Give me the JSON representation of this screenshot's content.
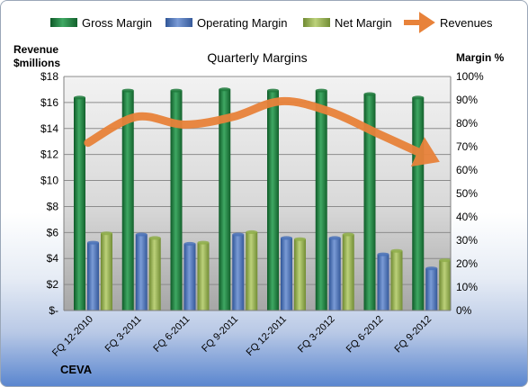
{
  "chart_data": {
    "type": "bar",
    "title": "Quarterly Margins",
    "left_axis_label": [
      "Revenue",
      "$millions"
    ],
    "right_axis_label": "Margin %",
    "company": "CEVA",
    "categories": [
      "FQ 12-2010",
      "FQ 3-2011",
      "FQ 6-2011",
      "FQ 9-2011",
      "FQ 12-2011",
      "FQ 3-2012",
      "FQ 6-2012",
      "FQ 9-2012"
    ],
    "left_ticks": [
      "$-",
      "$2",
      "$4",
      "$6",
      "$8",
      "$10",
      "$12",
      "$14",
      "$16",
      "$18"
    ],
    "right_ticks": [
      "0%",
      "10%",
      "20%",
      "30%",
      "40%",
      "50%",
      "60%",
      "70%",
      "80%",
      "90%",
      "100%"
    ],
    "left_ylim": [
      0,
      18
    ],
    "right_ylim": [
      0,
      100
    ],
    "grid": true,
    "legend_position": "top",
    "series": [
      {
        "name": "Gross Margin",
        "axis": "right",
        "color": "#1e7a3c",
        "values": [
          91,
          94,
          94,
          94.5,
          94,
          94,
          92.5,
          91
        ]
      },
      {
        "name": "Operating Margin",
        "axis": "right",
        "color": "#4a72b8",
        "values": [
          29,
          32.5,
          28.5,
          32.5,
          31,
          31,
          24,
          18
        ]
      },
      {
        "name": "Net Margin",
        "axis": "right",
        "color": "#8fae4a",
        "values": [
          33,
          31,
          29,
          33.5,
          30.5,
          32.5,
          25.5,
          21.5
        ]
      },
      {
        "name": "Revenues",
        "axis": "left",
        "color": "#e8823a",
        "type": "line",
        "values": [
          12.9,
          14.9,
          14.3,
          14.9,
          16.1,
          15.3,
          13.6,
          11.9
        ]
      }
    ]
  }
}
